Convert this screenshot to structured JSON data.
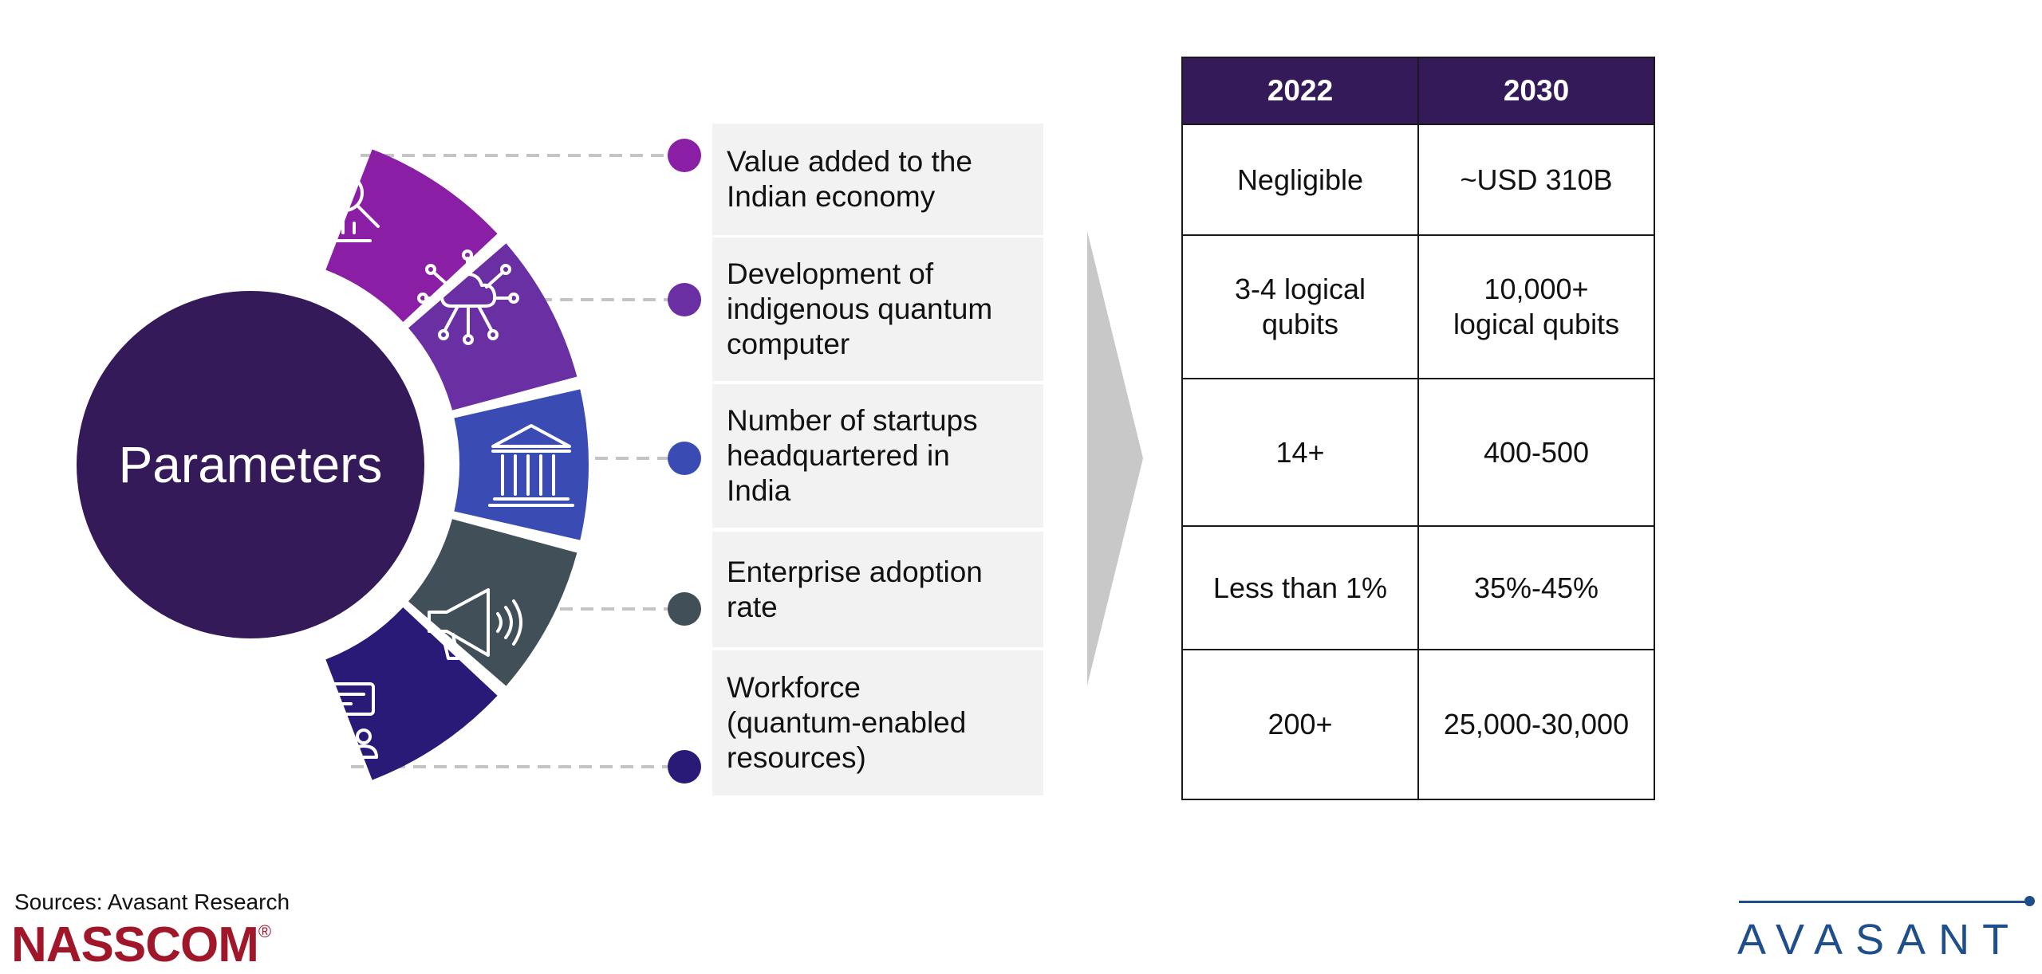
{
  "hub": {
    "title": "Parameters"
  },
  "parameters": [
    {
      "label": [
        "Value added to the",
        "Indian economy"
      ],
      "icon": "finance-search-icon",
      "color": "#8a1fa6",
      "dot_color": "#8a1fa6"
    },
    {
      "label": [
        "Development of",
        "indigenous quantum",
        "computer"
      ],
      "icon": "cloud-network-icon",
      "color": "#6a2fa3",
      "dot_color": "#6a2fa3"
    },
    {
      "label": [
        "Number of startups",
        "headquartered in",
        "India"
      ],
      "icon": "institution-building-icon",
      "color": "#3a4bb4",
      "dot_color": "#3a4bb4"
    },
    {
      "label": [
        "Enterprise adoption",
        "rate"
      ],
      "icon": "megaphone-icon",
      "color": "#414f58",
      "dot_color": "#414f58"
    },
    {
      "label": [
        "Workforce",
        "(quantum-enabled",
        "resources)"
      ],
      "icon": "team-chat-icon",
      "color": "#2a1a78",
      "dot_color": "#2a1a78"
    }
  ],
  "table": {
    "headers": [
      "2022",
      "2030"
    ],
    "rows": [
      [
        [
          "Negligible"
        ],
        [
          "~USD 310B"
        ]
      ],
      [
        [
          "3-4 logical",
          "qubits"
        ],
        [
          "10,000+",
          "logical qubits"
        ]
      ],
      [
        [
          "14+"
        ],
        [
          "400-500"
        ]
      ],
      [
        [
          "Less than 1%"
        ],
        [
          "35%-45%"
        ]
      ],
      [
        [
          "200+"
        ],
        [
          "25,000-30,000"
        ]
      ]
    ]
  },
  "footer": {
    "sources": "Sources: Avasant Research",
    "nasscom_logo": "NASSCOM",
    "nasscom_mark": "®",
    "avasant_logo": "AVASANT"
  },
  "colors": {
    "hub": "#341a58",
    "header": "#341a58",
    "arrow": "#c8c8c8",
    "label_bg": "#f2f2f2"
  }
}
